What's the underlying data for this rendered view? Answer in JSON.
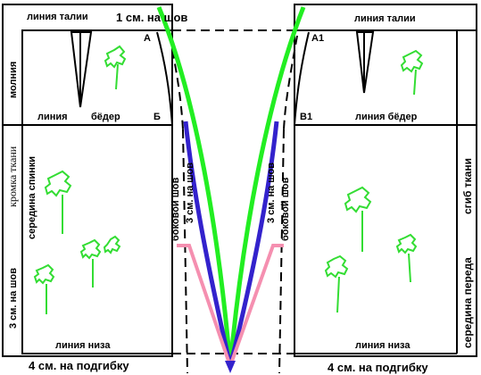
{
  "labels": {
    "waist_left": "линия талии",
    "seam_top": "1 см. на шов",
    "waist_right": "линия талии",
    "zipper": "молния",
    "point_a": "А",
    "point_a1": "А1",
    "hip_left_1": "линия",
    "hip_left_2": "бёдер",
    "point_b": "Б",
    "point_b1": "В1",
    "hip_right": "линия бёдер",
    "selvedge": "кромка ткани",
    "back_center": "середина спинки",
    "seam_left_3cm": "3 см. на шов",
    "side_seam_left": "боковой шов",
    "seam_mid_left": "3 см. на шов",
    "seam_mid_right": "3 см. на шов",
    "side_seam_right": "боковой шов",
    "fabric_fold": "сгиб ткани",
    "front_center": "середина переда",
    "hem_left": "линия низа",
    "hem_right": "линия низа",
    "hem_allow_left": "4 см. на подгибку",
    "hem_allow_right": "4 см. на подгибку"
  },
  "colors": {
    "green_line": "#22ee22",
    "blue_line": "#3322cc",
    "pink_line": "#f58fb0",
    "tree_green": "#33dd33",
    "outline": "#000000"
  },
  "icons": {
    "tree": "tree-doodle-icon"
  }
}
